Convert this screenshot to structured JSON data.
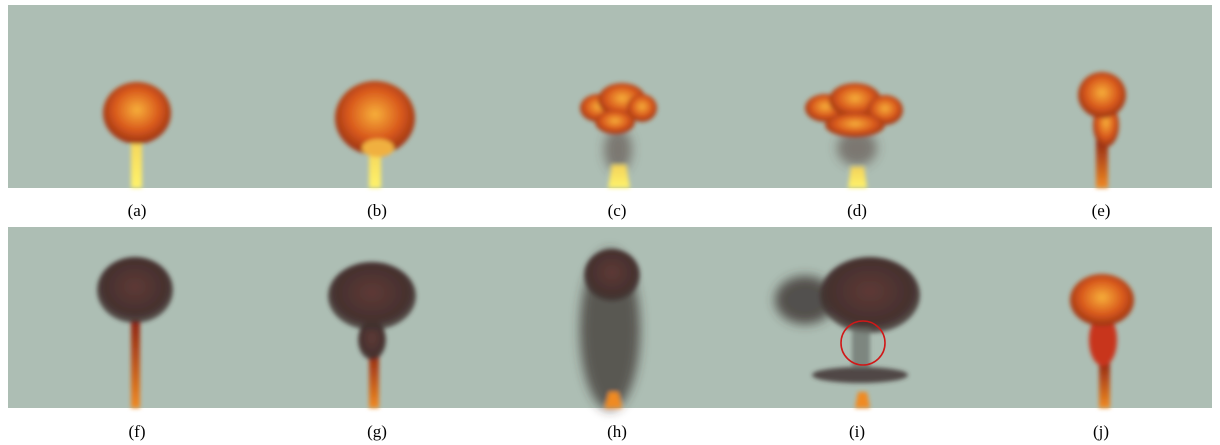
{
  "figure": {
    "captions": [
      "(a)",
      "(b)",
      "(c)",
      "(d)",
      "(e)",
      "(f)",
      "(g)",
      "(h)",
      "(i)",
      "(j)"
    ]
  }
}
